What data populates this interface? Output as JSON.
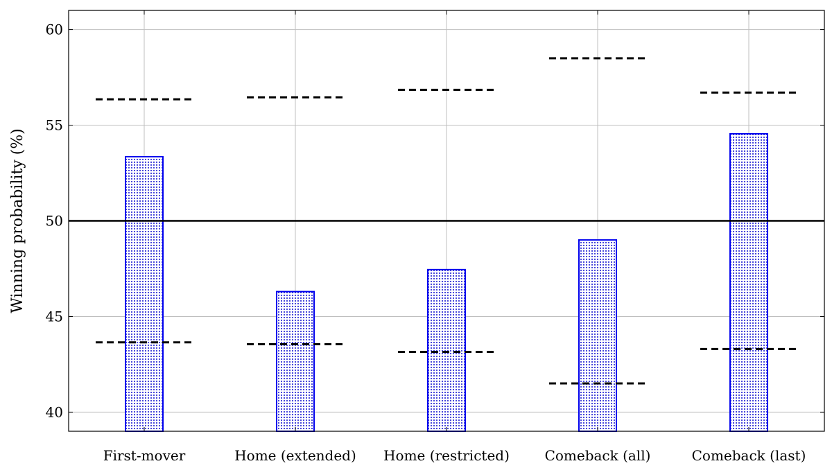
{
  "chart_data": {
    "type": "bar",
    "title": "",
    "xlabel": "",
    "ylabel": "Winning probability (%)",
    "ylim": [
      39,
      61
    ],
    "yticks": [
      40,
      45,
      50,
      55,
      60
    ],
    "grid": true,
    "categories": [
      "First-mover",
      "Home (extended)",
      "Home (restricted)",
      "Comeback (all)",
      "Comeback (last)"
    ],
    "values": [
      53.35,
      46.3,
      47.45,
      49.0,
      54.55
    ],
    "upper_bounds": [
      56.35,
      56.45,
      56.85,
      58.5,
      56.7
    ],
    "lower_bounds": [
      43.65,
      43.55,
      43.15,
      41.5,
      43.3
    ],
    "reference_line": 50,
    "colors": {
      "bar_edge": "#0000ee",
      "bar_dots": "#0000cc",
      "bound_line": "#000000",
      "reference_line": "#000000",
      "grid": "#bfbfbf"
    }
  }
}
